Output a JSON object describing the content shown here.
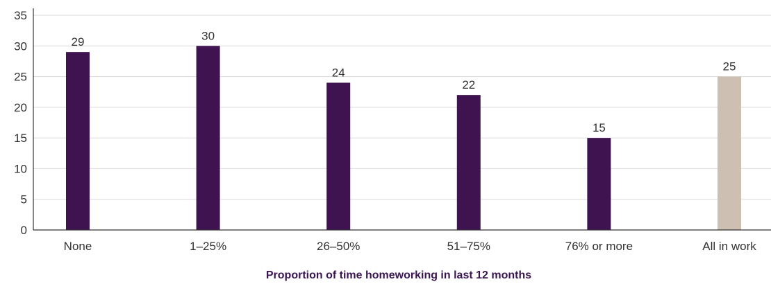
{
  "chart_data": {
    "type": "bar",
    "categories": [
      "None",
      "1–25%",
      "26–50%",
      "51–75%",
      "76% or more",
      "All in work"
    ],
    "values": [
      29,
      30,
      24,
      22,
      15,
      25
    ],
    "data_labels": [
      "29",
      "30",
      "24",
      "22",
      "15",
      "25"
    ],
    "yticks": [
      "0",
      "5",
      "10",
      "15",
      "20",
      "25",
      "30",
      "35"
    ],
    "ylim": [
      0,
      35
    ],
    "xlabel": "Proportion of time homeworking in last 12 months",
    "ylabel": "",
    "grid": true,
    "colors": {
      "bar": "#3e1350",
      "highlight_bar": "#cdbfb1",
      "gridline": "#d9d9d9",
      "axis": "#333333",
      "xlabel": "#3a1650"
    },
    "highlight_index": 5
  }
}
